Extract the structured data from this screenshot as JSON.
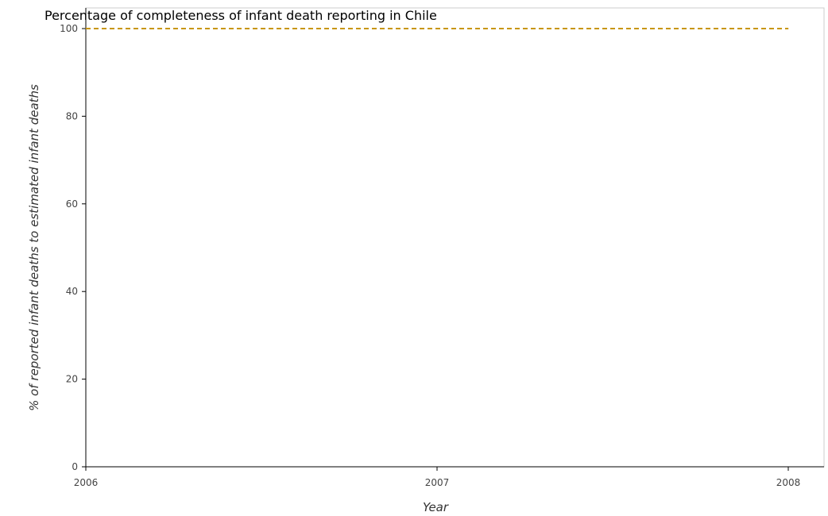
{
  "chart_data": {
    "type": "line",
    "title": "Percentage of completeness of infant death reporting in Chile",
    "xlabel": "Year",
    "ylabel": "% of reported infant deaths to estimated infant deaths",
    "categories": [
      "2006",
      "2007",
      "2008"
    ],
    "series": [
      {
        "values": [
          100,
          100,
          100
        ],
        "color": "#c8960a",
        "style": "dashed"
      }
    ],
    "ylim": [
      0,
      100
    ],
    "yticks": [
      "0",
      "20",
      "40",
      "60",
      "80",
      "100"
    ],
    "grid": false,
    "legend": "none"
  }
}
